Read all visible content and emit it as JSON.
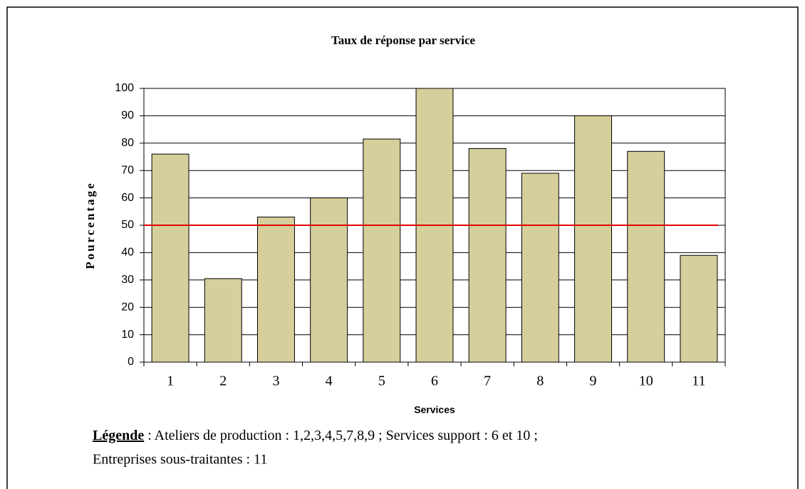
{
  "chart_data": {
    "type": "bar",
    "title": "Taux de réponse par service",
    "y_label": "Pourcentage",
    "x_label": "Services",
    "categories": [
      "1",
      "2",
      "3",
      "4",
      "5",
      "6",
      "7",
      "8",
      "9",
      "10",
      "11"
    ],
    "values": [
      76,
      30.5,
      53,
      60,
      81.5,
      100,
      78,
      69,
      90,
      77,
      39
    ],
    "color": "#d6cf9c",
    "ylim": [
      0,
      100
    ],
    "yticks": [
      0,
      10,
      20,
      30,
      40,
      50,
      60,
      70,
      80,
      90,
      100
    ],
    "grid": true,
    "reference_line": {
      "value": 50,
      "color": "#e00000"
    }
  },
  "note": {
    "label": "Légende",
    "lines": [
      ": Ateliers de production : 1,2,3,4,5,7,8,9 ; Services support : 6 et 10 ;",
      "Entreprises sous-traitantes : 11"
    ]
  }
}
